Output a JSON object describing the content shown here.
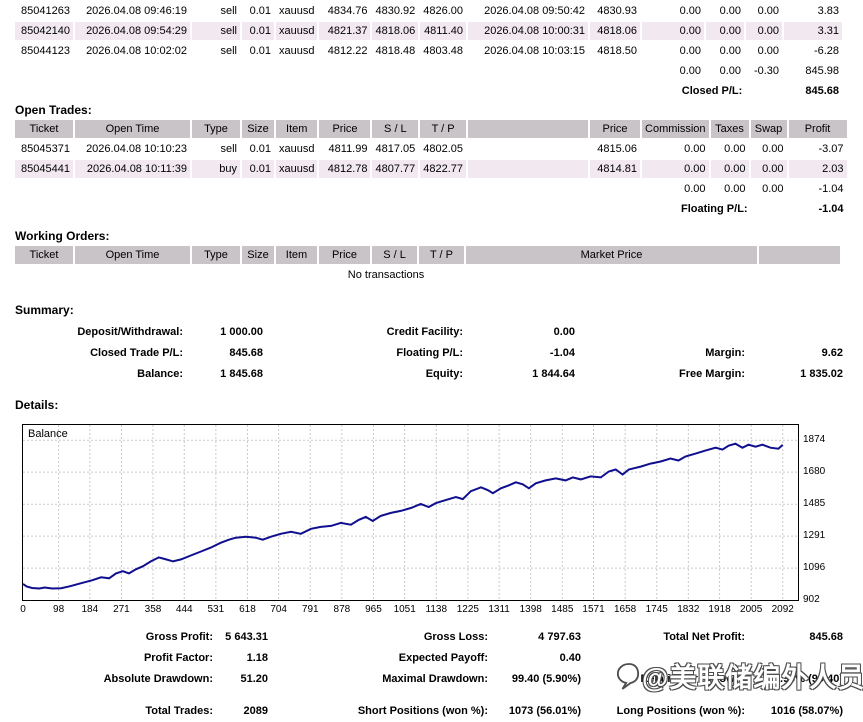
{
  "colors": {
    "header_bg": "#C8C4C8",
    "row_alt_bg": "#F1E9EF",
    "grid_color": "#c9c9c9",
    "line_color": "#0f0f8f",
    "watermark_outline": "#4d4d4d"
  },
  "closed_trades": {
    "rows": [
      [
        "85041263",
        "2026.04.08 09:46:19",
        "sell",
        "0.01",
        "xauusd",
        "4834.76",
        "4830.92",
        "4826.00",
        "2026.04.08 09:50:42",
        "4830.93",
        "0.00",
        "0.00",
        "0.00",
        "3.83"
      ],
      [
        "85042140",
        "2026.04.08 09:54:29",
        "sell",
        "0.01",
        "xauusd",
        "4821.37",
        "4818.06",
        "4811.40",
        "2026.04.08 10:00:31",
        "4818.06",
        "0.00",
        "0.00",
        "0.00",
        "3.31"
      ],
      [
        "85044123",
        "2026.04.08 10:02:02",
        "sell",
        "0.01",
        "xauusd",
        "4812.22",
        "4818.48",
        "4803.48",
        "2026.04.08 10:03:15",
        "4818.50",
        "0.00",
        "0.00",
        "0.00",
        "-6.28"
      ]
    ],
    "totals": [
      "0.00",
      "0.00",
      "-0.30",
      "845.98"
    ],
    "pl_label": "Closed P/L:",
    "pl_value": "845.68"
  },
  "open_trades": {
    "section_label": "Open Trades:",
    "headers": [
      "Ticket",
      "Open Time",
      "Type",
      "Size",
      "Item",
      "Price",
      "S / L",
      "T / P",
      "",
      "Price",
      "Commission",
      "Taxes",
      "Swap",
      "Profit"
    ],
    "rows": [
      [
        "85045371",
        "2026.04.08 10:10:23",
        "sell",
        "0.01",
        "xauusd",
        "4811.99",
        "4817.05",
        "4802.05",
        "",
        "4815.06",
        "0.00",
        "0.00",
        "0.00",
        "-3.07"
      ],
      [
        "85045441",
        "2026.04.08 10:11:39",
        "buy",
        "0.01",
        "xauusd",
        "4812.78",
        "4807.77",
        "4822.77",
        "",
        "4814.81",
        "0.00",
        "0.00",
        "0.00",
        "2.03"
      ]
    ],
    "totals": [
      "0.00",
      "0.00",
      "0.00",
      "-1.04"
    ],
    "pl_label": "Floating P/L:",
    "pl_value": "-1.04"
  },
  "working_orders": {
    "section_label": "Working Orders:",
    "headers": [
      "Ticket",
      "Open Time",
      "Type",
      "Size",
      "Item",
      "Price",
      "S / L",
      "T / P",
      "Market Price",
      ""
    ],
    "empty_text": "No transactions"
  },
  "summary": {
    "section_label": "Summary:",
    "rows": [
      [
        "Deposit/Withdrawal:",
        "1 000.00",
        "Credit Facility:",
        "0.00",
        "",
        ""
      ],
      [
        "Closed Trade P/L:",
        "845.68",
        "Floating P/L:",
        "-1.04",
        "Margin:",
        "9.62"
      ],
      [
        "Balance:",
        "1 845.68",
        "Equity:",
        "1 844.64",
        "Free Margin:",
        "1 835.02"
      ]
    ]
  },
  "details": {
    "section_label": "Details:"
  },
  "stats": {
    "rows": [
      [
        "Gross Profit:",
        "5 643.31",
        "Gross Loss:",
        "4 797.63",
        "Total Net Profit:",
        "845.68"
      ],
      [
        "Profit Factor:",
        "1.18",
        "Expected Payoff:",
        "0.40",
        "",
        ""
      ],
      [
        "Absolute Drawdown:",
        "51.20",
        "Maximal Drawdown:",
        "99.40 (5.90%)",
        "Relative Drawdown:",
        "5.90% (99.40)"
      ]
    ],
    "last_row": [
      [
        "Total Trades:",
        "2089",
        "Short Positions (won %):",
        "1073 (56.01%)",
        "Long Positions (won %):",
        "1016 (58.07%)"
      ]
    ]
  },
  "watermark": {
    "icon": "speech-bubble-icon",
    "text": "@美联储编外人员"
  },
  "chart_data": {
    "type": "line",
    "title": "Balance",
    "legend": [
      "Balance"
    ],
    "grid": true,
    "x_ticks": [
      0,
      98,
      184,
      271,
      358,
      444,
      531,
      618,
      704,
      791,
      878,
      965,
      1051,
      1138,
      1225,
      1311,
      1398,
      1485,
      1571,
      1658,
      1745,
      1832,
      1918,
      2005,
      2092
    ],
    "y_ticks": [
      902,
      1096,
      1291,
      1485,
      1680,
      1874
    ],
    "x_range": [
      0,
      2134
    ],
    "y_range": [
      902,
      1967
    ],
    "points": [
      [
        0,
        1000
      ],
      [
        10,
        985
      ],
      [
        25,
        975
      ],
      [
        45,
        972
      ],
      [
        60,
        978
      ],
      [
        80,
        972
      ],
      [
        105,
        974
      ],
      [
        130,
        986
      ],
      [
        160,
        1004
      ],
      [
        190,
        1022
      ],
      [
        215,
        1040
      ],
      [
        237,
        1034
      ],
      [
        256,
        1064
      ],
      [
        275,
        1077
      ],
      [
        292,
        1064
      ],
      [
        311,
        1089
      ],
      [
        330,
        1107
      ],
      [
        352,
        1137
      ],
      [
        374,
        1161
      ],
      [
        394,
        1149
      ],
      [
        413,
        1137
      ],
      [
        435,
        1149
      ],
      [
        462,
        1173
      ],
      [
        490,
        1197
      ],
      [
        517,
        1221
      ],
      [
        545,
        1251
      ],
      [
        567,
        1269
      ],
      [
        586,
        1281
      ],
      [
        614,
        1287
      ],
      [
        641,
        1281
      ],
      [
        660,
        1269
      ],
      [
        683,
        1287
      ],
      [
        710,
        1305
      ],
      [
        738,
        1317
      ],
      [
        765,
        1305
      ],
      [
        793,
        1335
      ],
      [
        820,
        1347
      ],
      [
        848,
        1353
      ],
      [
        875,
        1371
      ],
      [
        903,
        1360
      ],
      [
        925,
        1390
      ],
      [
        944,
        1408
      ],
      [
        963,
        1383
      ],
      [
        985,
        1414
      ],
      [
        1013,
        1432
      ],
      [
        1040,
        1444
      ],
      [
        1068,
        1462
      ],
      [
        1095,
        1486
      ],
      [
        1117,
        1468
      ],
      [
        1137,
        1492
      ],
      [
        1164,
        1510
      ],
      [
        1192,
        1528
      ],
      [
        1211,
        1516
      ],
      [
        1233,
        1564
      ],
      [
        1261,
        1588
      ],
      [
        1280,
        1570
      ],
      [
        1294,
        1552
      ],
      [
        1316,
        1582
      ],
      [
        1338,
        1600
      ],
      [
        1357,
        1618
      ],
      [
        1376,
        1606
      ],
      [
        1393,
        1582
      ],
      [
        1412,
        1612
      ],
      [
        1439,
        1630
      ],
      [
        1467,
        1642
      ],
      [
        1494,
        1630
      ],
      [
        1514,
        1648
      ],
      [
        1536,
        1636
      ],
      [
        1563,
        1654
      ],
      [
        1591,
        1648
      ],
      [
        1613,
        1684
      ],
      [
        1632,
        1696
      ],
      [
        1651,
        1666
      ],
      [
        1668,
        1696
      ],
      [
        1701,
        1714
      ],
      [
        1728,
        1732
      ],
      [
        1756,
        1745
      ],
      [
        1783,
        1763
      ],
      [
        1805,
        1751
      ],
      [
        1824,
        1775
      ],
      [
        1852,
        1793
      ],
      [
        1879,
        1811
      ],
      [
        1907,
        1829
      ],
      [
        1926,
        1817
      ],
      [
        1943,
        1841
      ],
      [
        1962,
        1853
      ],
      [
        1981,
        1829
      ],
      [
        1998,
        1847
      ],
      [
        2017,
        1835
      ],
      [
        2036,
        1847
      ],
      [
        2058,
        1829
      ],
      [
        2080,
        1823
      ],
      [
        2092,
        1846
      ]
    ]
  }
}
